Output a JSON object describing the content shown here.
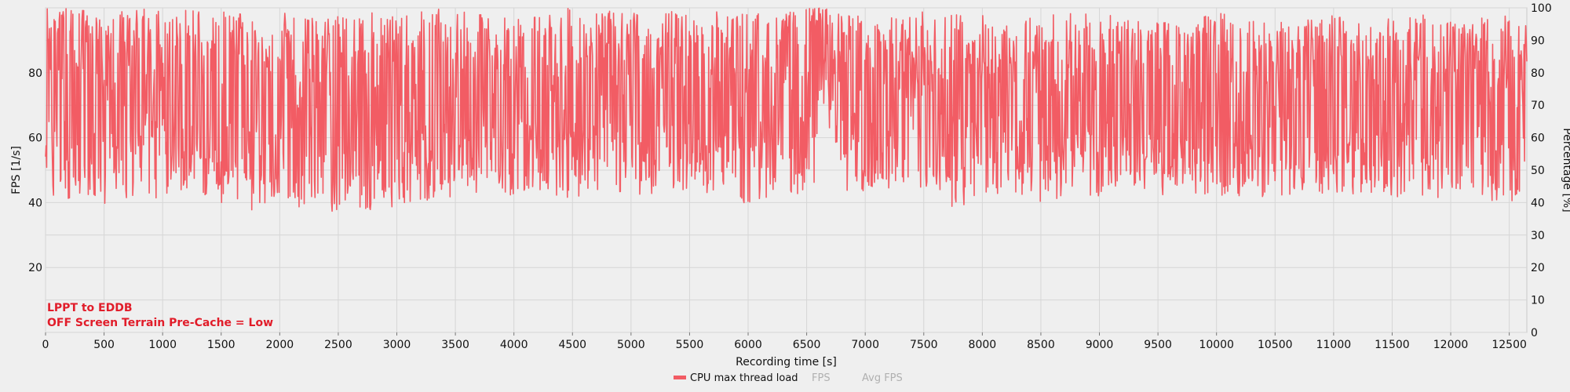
{
  "chart_data": {
    "type": "line",
    "xlabel": "Recording time [s]",
    "ylabel_left": "FPS [1/s]",
    "ylabel_right": "Percentage [%]",
    "xlim": [
      0,
      12650
    ],
    "ylim_left": [
      0,
      100
    ],
    "ylim_right": [
      0,
      100
    ],
    "x_ticks": [
      0,
      500,
      1000,
      1500,
      2000,
      2500,
      3000,
      3500,
      4000,
      4500,
      5000,
      5500,
      6000,
      6500,
      7000,
      7500,
      8000,
      8500,
      9000,
      9500,
      10000,
      10500,
      11000,
      11500,
      12000,
      12500
    ],
    "y_ticks_left": [
      20,
      40,
      60,
      80
    ],
    "y_ticks_right": [
      0,
      10,
      20,
      30,
      40,
      50,
      60,
      70,
      80,
      90,
      100
    ],
    "grid": true,
    "series": [
      {
        "name": "CPU max thread load",
        "axis": "right",
        "color": "#f25c64",
        "visible": true,
        "x": [
          0,
          250,
          500,
          750,
          1000,
          1250,
          1500,
          1750,
          2000,
          2250,
          2500,
          2750,
          3000,
          3250,
          3500,
          3750,
          4000,
          4250,
          4500,
          4750,
          5000,
          5250,
          5500,
          5750,
          6000,
          6250,
          6500,
          6600,
          6650,
          6750,
          7000,
          7250,
          7500,
          7750,
          8000,
          8250,
          8500,
          8750,
          9000,
          9250,
          9500,
          9750,
          10000,
          10250,
          10500,
          10750,
          11000,
          11250,
          11500,
          11750,
          12000,
          12250,
          12500,
          12650
        ],
        "min": [
          42,
          40,
          39,
          42,
          41,
          43,
          40,
          37,
          40,
          38,
          37,
          37,
          39,
          40,
          41,
          44,
          42,
          43,
          41,
          44,
          42,
          43,
          44,
          42,
          39,
          42,
          43,
          45,
          72,
          44,
          43,
          41,
          42,
          38,
          41,
          43,
          40,
          42,
          41,
          43,
          42,
          43,
          42,
          42,
          41,
          43,
          42,
          43,
          42,
          41,
          40,
          41,
          39,
          42
        ],
        "max": [
          100,
          100,
          98,
          100,
          100,
          100,
          99,
          98,
          99,
          97,
          98,
          99,
          97,
          100,
          99,
          98,
          97,
          99,
          100,
          99,
          99,
          100,
          98,
          99,
          99,
          98,
          100,
          100,
          100,
          99,
          98,
          97,
          99,
          99,
          98,
          97,
          98,
          99,
          98,
          97,
          96,
          96,
          99,
          98,
          97,
          96,
          98,
          95,
          97,
          98,
          96,
          97,
          98,
          100
        ],
        "avg": [
          72,
          70,
          69,
          68,
          68,
          67,
          66,
          66,
          65,
          65,
          65,
          66,
          66,
          67,
          67,
          67,
          68,
          67,
          67,
          67,
          67,
          67,
          67,
          67,
          67,
          67,
          68,
          90,
          88,
          70,
          68,
          68,
          68,
          68,
          67,
          68,
          68,
          68,
          68,
          67,
          67,
          67,
          68,
          68,
          67,
          66,
          66,
          66,
          67,
          67,
          66,
          66,
          66,
          67
        ]
      },
      {
        "name": "FPS",
        "axis": "left",
        "color": "#b8b8b8",
        "visible": false,
        "values": []
      },
      {
        "name": "Avg FPS",
        "axis": "left",
        "color": "#b8b8b8",
        "visible": false,
        "values": []
      }
    ],
    "annotations": [
      "LPPT to EDDB",
      "OFF Screen Terrain Pre-Cache = Low"
    ],
    "legend_position": "bottom-center"
  }
}
